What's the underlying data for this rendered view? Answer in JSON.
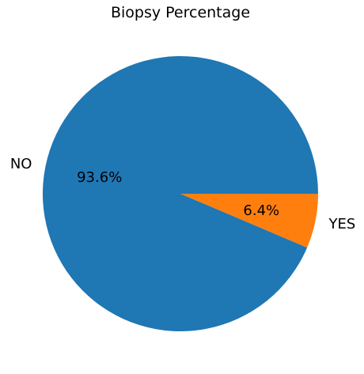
{
  "chart_data": {
    "type": "pie",
    "title": "Biopsy Percentage",
    "slices": [
      {
        "label": "NO",
        "value": 93.6,
        "value_label": "93.6%",
        "color": "#1f77b4"
      },
      {
        "label": "YES",
        "value": 6.4,
        "value_label": "6.4%",
        "color": "#ff7f0e"
      }
    ],
    "start_angle_deg": 0,
    "direction": "counterclockwise"
  }
}
